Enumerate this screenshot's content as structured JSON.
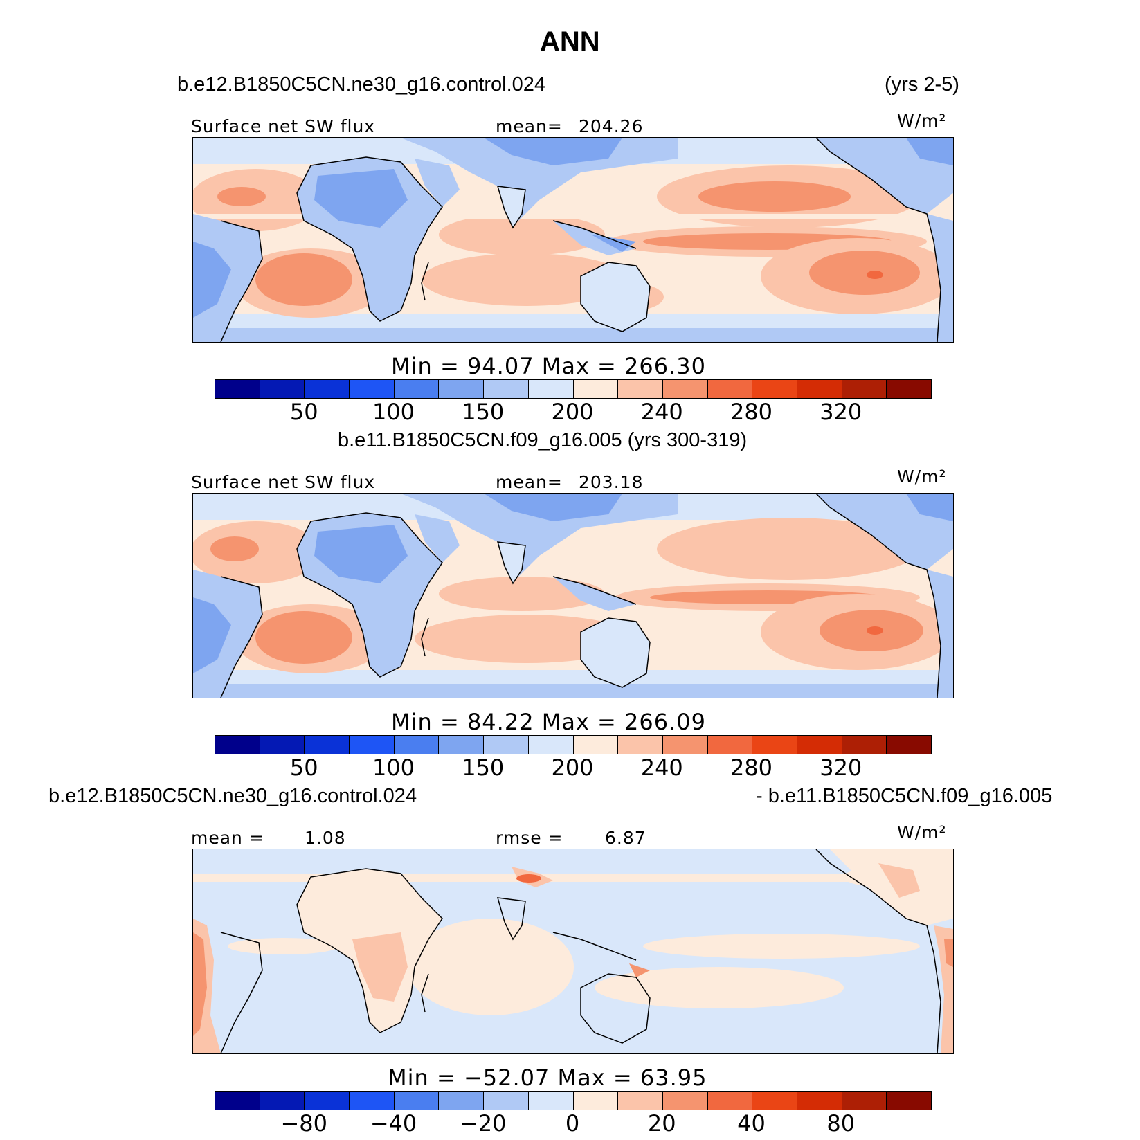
{
  "title": "ANN",
  "panels": [
    {
      "case_left": "b.e12.B1850C5CN.ne30_g16.control.024",
      "case_right": "(yrs 2-5)",
      "variable": "Surface net SW flux",
      "stat_left_label": "mean=",
      "stat_left_value": "204.26",
      "units": "W/m²",
      "minmax": "Min =  94.07  Max = 266.30",
      "ticks": [
        "50",
        "100",
        "150",
        "200",
        "240",
        "280",
        "320"
      ],
      "kind": "field"
    },
    {
      "case_left": "b.e11.B1850C5CN.f09_g16.005 (yrs 300-319)",
      "variable": "Surface net SW flux",
      "stat_left_label": "mean=",
      "stat_left_value": "203.18",
      "units": "W/m²",
      "minmax": "Min =  84.22  Max = 266.09",
      "ticks": [
        "50",
        "100",
        "150",
        "200",
        "240",
        "280",
        "320"
      ],
      "kind": "field"
    },
    {
      "case_left": "b.e12.B1850C5CN.ne30_g16.control.024",
      "case_right": "- b.e11.B1850C5CN.f09_g16.005",
      "stat_left_label": "mean =",
      "stat_left_value": "1.08",
      "stat_mid_label": "rmse =",
      "stat_mid_value": "6.87",
      "units": "W/m²",
      "minmax": "Min = −52.07  Max =  63.95",
      "ticks": [
        "−80",
        "−40",
        "−20",
        "0",
        "20",
        "40",
        "80"
      ],
      "kind": "diff"
    }
  ],
  "colorbar_colors": [
    "#00008b",
    "#0419b4",
    "#0a32d7",
    "#1e55f5",
    "#4a7ef0",
    "#7ea5f0",
    "#b0c9f5",
    "#d9e7fa",
    "#fdebdc",
    "#fbc4aa",
    "#f5946f",
    "#f1683f",
    "#ea4515",
    "#d42c05",
    "#ad1f05",
    "#880a00"
  ],
  "palette": {
    "ocean_base": "#fdebdc",
    "land_base": "#d9e7fa",
    "diff_base": "#d9e7fa",
    "diff_pos": "#fdebdc"
  }
}
